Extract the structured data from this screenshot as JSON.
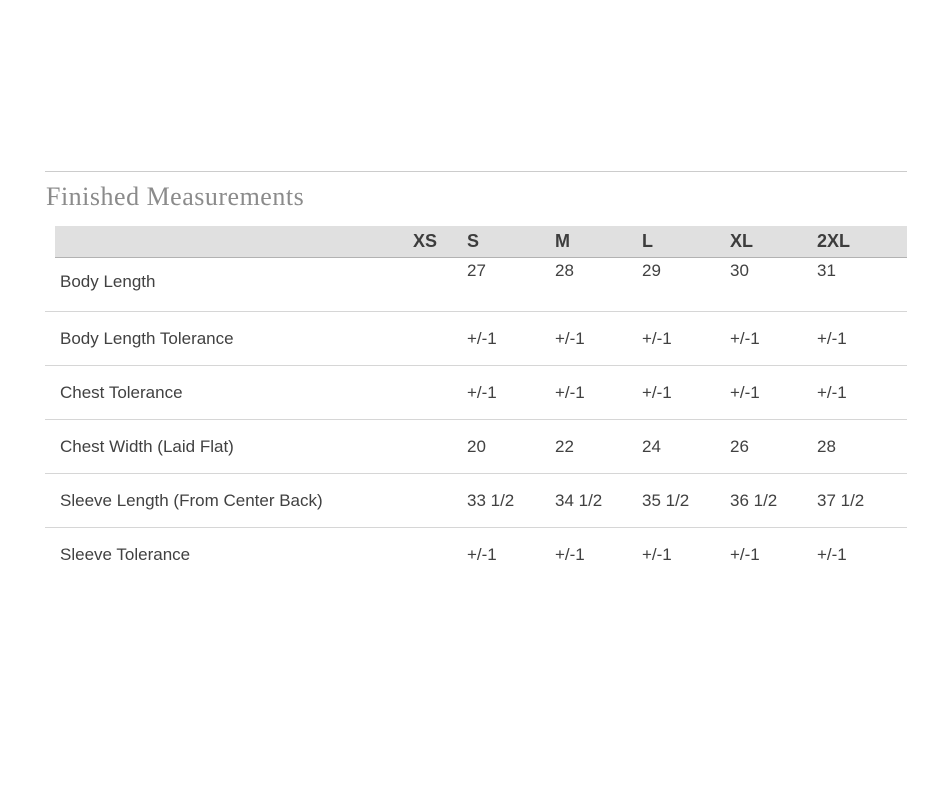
{
  "section": {
    "title": "Finished Measurements"
  },
  "size_chart": {
    "columns": [
      "",
      "XS",
      "S",
      "M",
      "L",
      "XL",
      "2XL"
    ],
    "rows": [
      {
        "label": "Body Length",
        "values": [
          "",
          "27",
          "28",
          "29",
          "30",
          "31"
        ]
      },
      {
        "label": "Body Length Tolerance",
        "values": [
          "",
          "+/-1",
          "+/-1",
          "+/-1",
          "+/-1",
          "+/-1"
        ]
      },
      {
        "label": "Chest Tolerance",
        "values": [
          "",
          "+/-1",
          "+/-1",
          "+/-1",
          "+/-1",
          "+/-1"
        ]
      },
      {
        "label": "Chest Width (Laid Flat)",
        "values": [
          "",
          "20",
          "22",
          "24",
          "26",
          "28"
        ]
      },
      {
        "label": "Sleeve Length (From Center Back)",
        "values": [
          "",
          "33 1/2",
          "34 1/2",
          "35 1/2",
          "36 1/2",
          "37 1/2"
        ]
      },
      {
        "label": "Sleeve Tolerance",
        "values": [
          "",
          "+/-1",
          "+/-1",
          "+/-1",
          "+/-1",
          "+/-1"
        ]
      }
    ]
  },
  "colors": {
    "header_bg": "#e0e0e0",
    "header_border": "#b2b2b2",
    "row_divider": "#d6d6d6",
    "top_rule": "#cccccc",
    "title_text": "#8b8b8b",
    "body_text": "#414141"
  }
}
